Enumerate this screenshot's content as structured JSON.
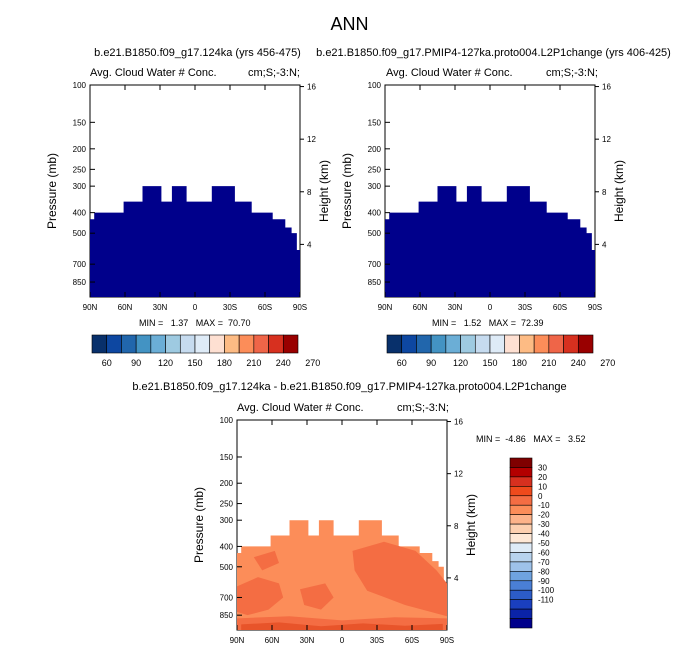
{
  "main_title": "ANN",
  "colors": {
    "navy": "#00008b",
    "diff_light_orange": "#fc8d59",
    "diff_orange": "#f46d43",
    "diff_dark_orange": "#e8542a"
  },
  "chart_data": [
    {
      "type": "heatmap",
      "title": "b.e21.B1850.f09_g17.124ka (yrs 456-475)",
      "left_label": "Avg. Cloud Water # Conc.",
      "right_label": "cm;S;-3:N;",
      "ylabel": "Pressure (mb)",
      "ylabel_right": "Height (km)",
      "x_ticks": [
        "90N",
        "60N",
        "30N",
        "0",
        "30S",
        "60S",
        "90S"
      ],
      "y_ticks": [
        "100",
        "150",
        "200",
        "250",
        "300",
        "400",
        "500",
        "700",
        "850"
      ],
      "y_ticks_right": [
        "16",
        "12",
        "8",
        "4"
      ],
      "stats": "MIN =   1.37   MAX =  70.70",
      "colorbar_labels": [
        "60",
        "90",
        "120",
        "150",
        "180",
        "210",
        "240",
        "270"
      ],
      "colorbar_colors": [
        "#08306b",
        "#0d47a1",
        "#2166ac",
        "#4393c3",
        "#6baed6",
        "#9ecae1",
        "#c6dbef",
        "#deebf7",
        "#fee0d2",
        "#fdbb84",
        "#fc8d59",
        "#ef6548",
        "#d7301f",
        "#990000"
      ]
    },
    {
      "type": "heatmap",
      "title": "b.e21.B1850.f09_g17.PMIP4-127ka.proto004.L2P1change (yrs 406-425)",
      "left_label": "Avg. Cloud Water # Conc.",
      "right_label": "cm;S;-3:N;",
      "ylabel": "Pressure (mb)",
      "ylabel_right": "Height (km)",
      "x_ticks": [
        "90N",
        "60N",
        "30N",
        "0",
        "30S",
        "60S",
        "90S"
      ],
      "y_ticks": [
        "100",
        "150",
        "200",
        "250",
        "300",
        "400",
        "500",
        "700",
        "850"
      ],
      "y_ticks_right": [
        "16",
        "12",
        "8",
        "4"
      ],
      "stats": "MIN =   1.52   MAX =  72.39",
      "colorbar_labels": [
        "60",
        "90",
        "120",
        "150",
        "180",
        "210",
        "240",
        "270"
      ],
      "colorbar_colors": [
        "#08306b",
        "#0d47a1",
        "#2166ac",
        "#4393c3",
        "#6baed6",
        "#9ecae1",
        "#c6dbef",
        "#deebf7",
        "#fee0d2",
        "#fdbb84",
        "#fc8d59",
        "#ef6548",
        "#d7301f",
        "#990000"
      ]
    },
    {
      "type": "heatmap",
      "title": "b.e21.B1850.f09_g17.124ka - b.e21.B1850.f09_g17.PMIP4-127ka.proto004.L2P1change",
      "left_label": "Avg. Cloud Water # Conc.",
      "right_label": "cm;S;-3:N;",
      "ylabel": "Pressure (mb)",
      "ylabel_right": "Height (km)",
      "x_ticks": [
        "90N",
        "60N",
        "30N",
        "0",
        "30S",
        "60S",
        "90S"
      ],
      "y_ticks": [
        "100",
        "150",
        "200",
        "250",
        "300",
        "400",
        "500",
        "700",
        "850"
      ],
      "y_ticks_right": [
        "16",
        "12",
        "8",
        "4"
      ],
      "stats": "MIN =  -4.86   MAX =   3.52",
      "colorbar_labels": [
        "30",
        "20",
        "10",
        "0",
        "-10",
        "-20",
        "-30",
        "-40",
        "-50",
        "-60",
        "-70",
        "-80",
        "-90",
        "-100",
        "-110"
      ],
      "colorbar_colors": [
        "#7f0000",
        "#b30000",
        "#d7301f",
        "#ef4a1c",
        "#f46d43",
        "#fc8d59",
        "#fdb38a",
        "#fdd0b0",
        "#fee8d6",
        "#deebf7",
        "#b8d3ee",
        "#9ec2ea",
        "#6fa3e0",
        "#4a7fd6",
        "#2c5cc8",
        "#1a3fbf",
        "#0a23a8",
        "#00008b"
      ]
    }
  ]
}
